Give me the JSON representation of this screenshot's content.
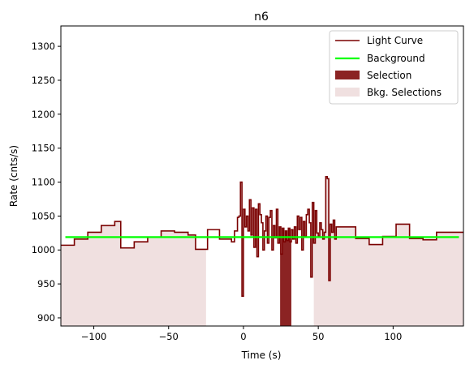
{
  "chart_data": {
    "type": "line",
    "title": "n6",
    "xlabel": "Time (s)",
    "ylabel": "Rate (cnts/s)",
    "xlim": [
      -122,
      147
    ],
    "ylim": [
      888,
      1330
    ],
    "xticks": [
      -100,
      -50,
      0,
      50,
      100
    ],
    "yticks": [
      900,
      950,
      1000,
      1050,
      1100,
      1150,
      1200,
      1250,
      1300
    ],
    "xtick_labels": [
      "−100",
      "−50",
      "0",
      "50",
      "100"
    ],
    "ytick_labels": [
      "900",
      "950",
      "1000",
      "1050",
      "1100",
      "1150",
      "1200",
      "1250",
      "1300"
    ],
    "grid": false,
    "legend_position": "top-right",
    "legend": [
      "Light Curve",
      "Background",
      "Selection",
      "Bkg. Selections"
    ],
    "colors": {
      "light_curve": "#7a0000",
      "background": "#00ff00",
      "selection": "#8b2323",
      "bkg_selection": "#f0e0e0"
    },
    "light_curve": {
      "edges": [
        -122,
        -113,
        -104,
        -95,
        -86,
        -82,
        -73,
        -64,
        -55,
        -46,
        -37,
        -32,
        -24,
        -16,
        -8,
        -6,
        -4,
        -3,
        -2,
        -1,
        0,
        1,
        2,
        3,
        4,
        5,
        6,
        7,
        8,
        9,
        10,
        11,
        12,
        13,
        14,
        15,
        16,
        17,
        18,
        19,
        20,
        21,
        22,
        23,
        24,
        25,
        26,
        27,
        28,
        29,
        30,
        31,
        32,
        33,
        34,
        35,
        36,
        37,
        38,
        39,
        40,
        41,
        42,
        43,
        44,
        45,
        46,
        47,
        48,
        49,
        50,
        51,
        52,
        53,
        54,
        55,
        56,
        57,
        58,
        59,
        60,
        61,
        62,
        66,
        75,
        84,
        93,
        102,
        111,
        120,
        129,
        138,
        147
      ],
      "values": [
        1007,
        1016,
        1026,
        1036,
        1042,
        1003,
        1012,
        1019,
        1028,
        1026,
        1022,
        1001,
        1030,
        1016,
        1012,
        1028,
        1048,
        1050,
        1100,
        932,
        1060,
        1034,
        1050,
        1028,
        1074,
        1022,
        1062,
        1004,
        1060,
        990,
        1068,
        1052,
        1040,
        1000,
        1028,
        1050,
        1010,
        1048,
        1058,
        1000,
        1036,
        1018,
        1060,
        1010,
        1034,
        994,
        1032,
        1012,
        1028,
        1014,
        1032,
        1012,
        1030,
        1016,
        1034,
        1010,
        1050,
        1030,
        1048,
        1000,
        1042,
        1020,
        1052,
        1060,
        1040,
        960,
        1070,
        1010,
        1058,
        1025,
        1020,
        1040,
        1030,
        1016,
        1026,
        1108,
        1105,
        955,
        1038,
        1026,
        1044,
        1016,
        1034,
        1034,
        1017,
        1008,
        1020,
        1038,
        1017,
        1015,
        1026,
        1026
      ]
    },
    "background": {
      "x": [
        -119,
        144
      ],
      "y": [
        1019,
        1019
      ]
    },
    "selection": {
      "range": [
        24.5,
        32
      ]
    },
    "bkg_selections": [
      {
        "range": [
          -122,
          -25
        ]
      },
      {
        "range": [
          47,
          147
        ]
      }
    ]
  }
}
